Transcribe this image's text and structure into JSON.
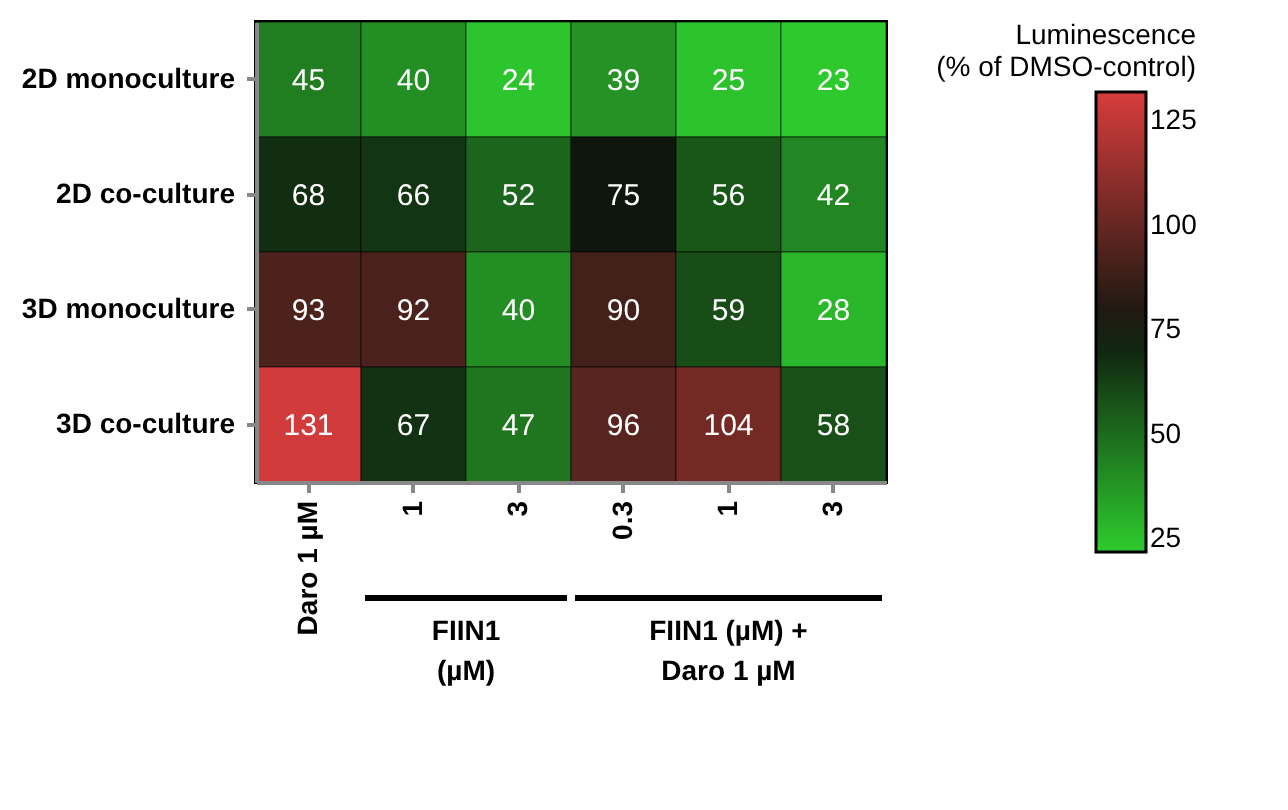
{
  "chart_data": {
    "type": "heatmap",
    "categories": [
      "Daro 1 µM",
      "1",
      "3",
      "0.3",
      "1",
      "3"
    ],
    "y_categories": [
      "2D monoculture",
      "2D co-culture",
      "3D monoculture",
      "3D co-culture"
    ],
    "cells": [
      [
        45,
        40,
        24,
        39,
        25,
        23
      ],
      [
        68,
        66,
        52,
        75,
        56,
        42
      ],
      [
        93,
        92,
        40,
        90,
        59,
        28
      ],
      [
        131,
        67,
        47,
        96,
        104,
        58
      ]
    ],
    "data_labels": true,
    "clabel": "Luminescence\n(% of DMSO-control)",
    "clim": [
      22,
      132
    ],
    "cticks": [
      25,
      50,
      75,
      100,
      125
    ],
    "annotations": [
      "FIIN1\n(µM)",
      "FIIN1 (µM) +\nDaro 1 µM"
    ]
  }
}
